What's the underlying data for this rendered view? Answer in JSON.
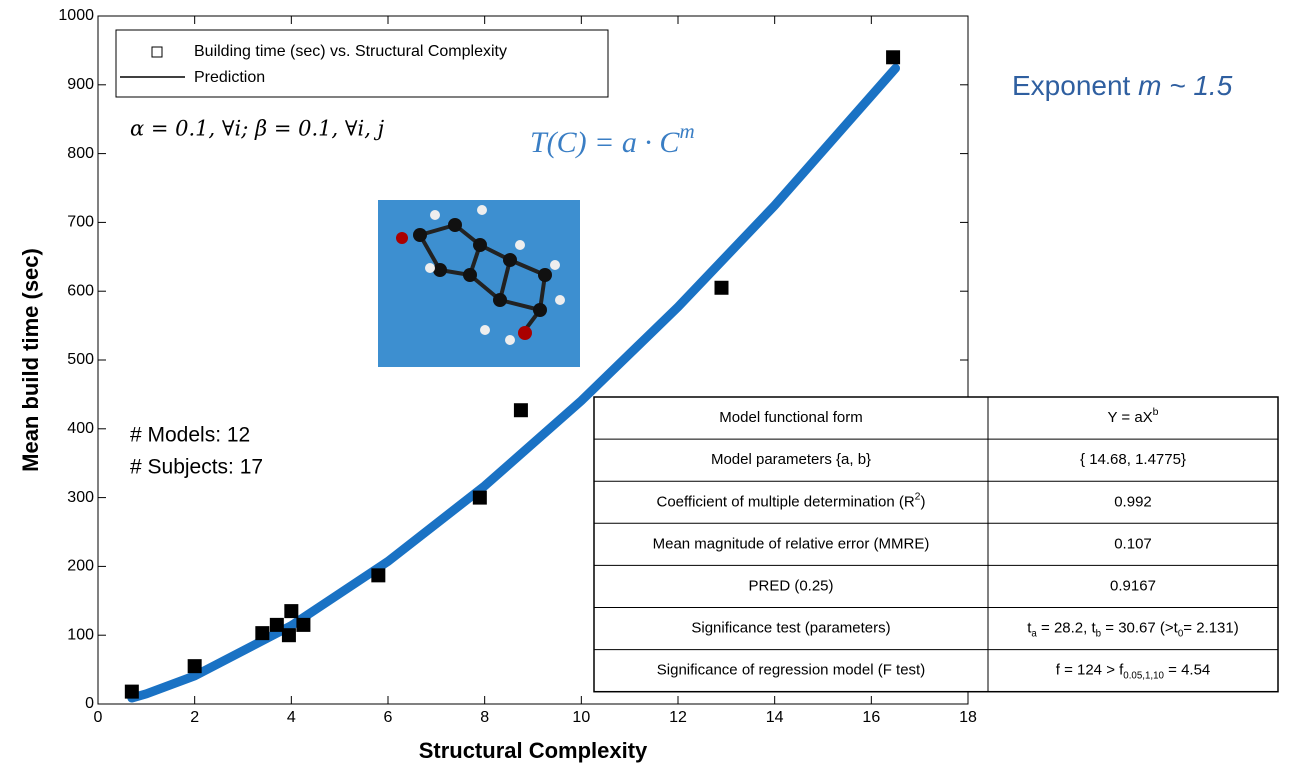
{
  "chart_data": {
    "type": "scatter",
    "xlabel": "Structural Complexity",
    "ylabel": "Mean build time (sec)",
    "xlim": [
      0,
      18
    ],
    "ylim": [
      0,
      1000
    ],
    "xticks": [
      0,
      2,
      4,
      6,
      8,
      10,
      12,
      14,
      16,
      18
    ],
    "yticks": [
      0,
      100,
      200,
      300,
      400,
      500,
      600,
      700,
      800,
      900,
      1000
    ],
    "series": [
      {
        "name": "Building time (sec) vs. Structural Complexity",
        "color": "#000000",
        "style": "marker",
        "x": [
          0.7,
          2,
          3.4,
          3.7,
          3.95,
          4,
          4.25,
          5.8,
          7.9,
          8.75,
          12.9,
          16.45
        ],
        "values": [
          18,
          55,
          103,
          115,
          100,
          135,
          115,
          187,
          300,
          427,
          605,
          940
        ]
      },
      {
        "name": "Prediction",
        "color": "#1a72c4",
        "style": "line",
        "x": [
          0.7,
          1,
          2,
          4,
          6,
          8,
          10,
          12,
          14,
          16.5
        ],
        "values": [
          8.7,
          14.7,
          40.9,
          113.9,
          207.3,
          317,
          440.8,
          577.1,
          724.6,
          924
        ]
      }
    ],
    "annotations": {
      "params": "α = 0.1, ∀i; β = 0.1, ∀i, j",
      "models": "# Models: 12",
      "subjects": "# Subjects: 17",
      "formula": [
        "T(C) = a · C",
        {
          "sup": "m"
        }
      ],
      "exponent": [
        "Exponent ",
        {
          "it": "m ~ 1.5"
        }
      ]
    }
  },
  "table": {
    "rows": [
      [
        [
          "Model functional form"
        ],
        [
          "Y = aX",
          {
            "sup": "b"
          }
        ]
      ],
      [
        [
          "Model parameters {a, b}"
        ],
        [
          "{ 14.68, 1.4775}"
        ]
      ],
      [
        [
          "Coefficient of multiple determination (R",
          {
            "sup": "2"
          },
          ")"
        ],
        [
          "0.992"
        ]
      ],
      [
        [
          "Mean magnitude of relative error (MMRE)"
        ],
        [
          "0.107"
        ]
      ],
      [
        [
          "PRED (0.25)"
        ],
        [
          "0.9167"
        ]
      ],
      [
        [
          "Significance test (parameters)"
        ],
        [
          "t",
          {
            "sub": "a"
          },
          " = 28.2, t",
          {
            "sub": "b"
          },
          " = 30.67 (>t",
          {
            "sub": "0"
          },
          "= 2.131)"
        ]
      ],
      [
        [
          "Significance of regression model (F test)"
        ],
        [
          "f = 124 > f",
          {
            "sub": "0.05,1,10"
          },
          " = 4.54"
        ]
      ]
    ]
  }
}
